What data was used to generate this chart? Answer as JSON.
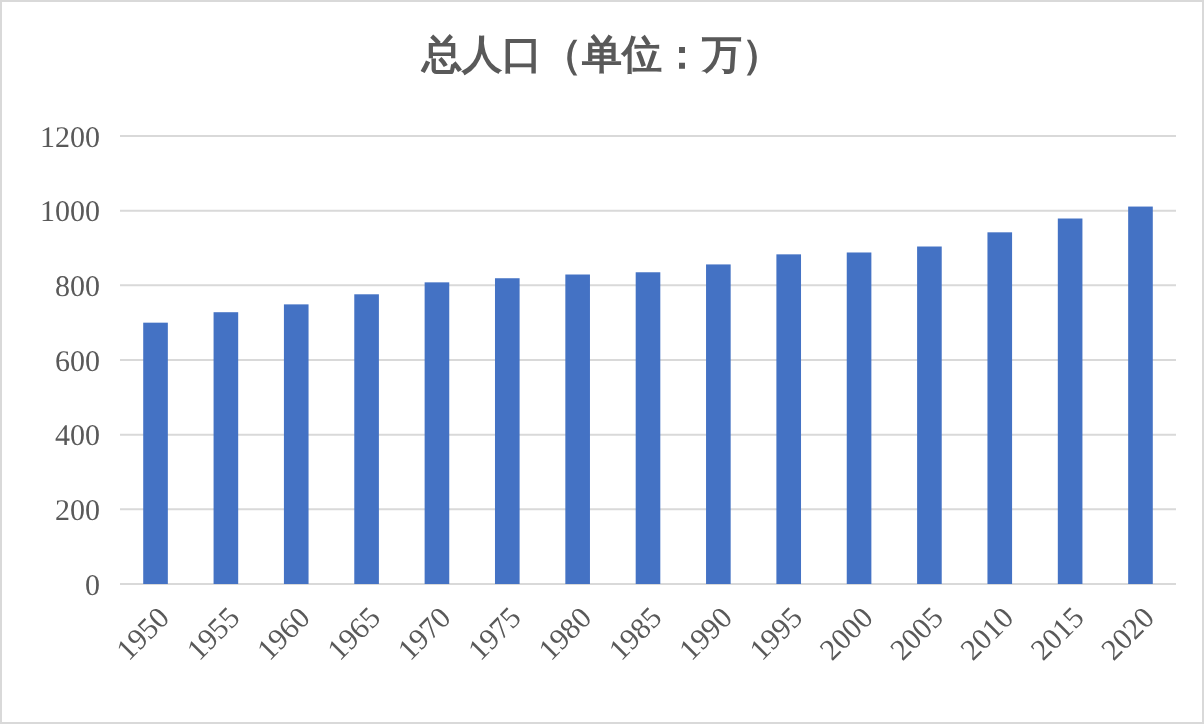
{
  "chart_data": {
    "type": "bar",
    "title": "总人口（单位：万）",
    "categories": [
      "1950",
      "1955",
      "1960",
      "1965",
      "1970",
      "1975",
      "1980",
      "1985",
      "1990",
      "1995",
      "2000",
      "2005",
      "2010",
      "2015",
      "2020"
    ],
    "values": [
      700,
      728,
      749,
      776,
      808,
      819,
      829,
      835,
      856,
      883,
      888,
      904,
      942,
      979,
      1011
    ],
    "color": "#4472c4",
    "ylim": [
      0,
      1200
    ],
    "yticks": [
      0,
      200,
      400,
      600,
      800,
      1000,
      1200
    ],
    "grid": true
  }
}
